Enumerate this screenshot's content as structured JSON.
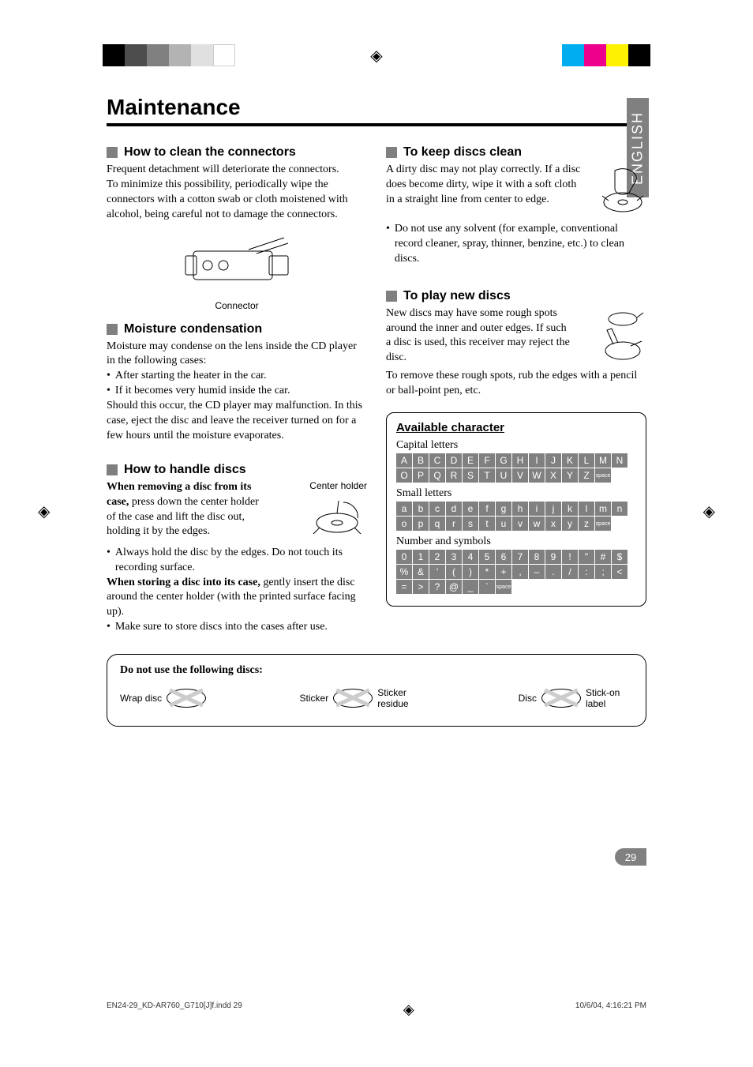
{
  "page_title": "Maintenance",
  "language_tab": "ENGLISH",
  "page_number": "29",
  "colors": {
    "accent_grey": "#808080",
    "black": "#000000",
    "white": "#ffffff",
    "cross_grey": "#cccccc"
  },
  "print_bars_left": [
    "#000000",
    "#4d4d4d",
    "#808080",
    "#b3b3b3",
    "#e0e0e0",
    "#ffffff"
  ],
  "print_bars_right": [
    "#00aeef",
    "#ec008c",
    "#fff200",
    "#000000"
  ],
  "left_sections": [
    {
      "heading": "How to clean the connectors",
      "paragraphs": [
        "Frequent detachment will deteriorate the connectors.",
        "To minimize this possibility, periodically wipe the connectors with a cotton swab or cloth moistened with alcohol, being careful not to damage the connectors."
      ],
      "figure_caption": "Connector"
    },
    {
      "heading": "Moisture condensation",
      "paragraphs": [
        "Moisture may condense on the lens inside the CD player in the following cases:"
      ],
      "bullets": [
        "After starting the heater in the car.",
        "If it becomes very humid inside the car."
      ],
      "after_text": "Should this occur, the CD player may malfunction. In this case, eject the disc and leave the receiver turned on for a few hours until the moisture evaporates."
    },
    {
      "heading": "How to handle discs",
      "center_holder_label": "Center holder",
      "lead_bold": "When removing a disc from its case,",
      "lead_rest": " press down the center holder of the case and lift the disc out, holding it by the edges.",
      "bullets": [
        "Always hold the disc by the edges. Do not touch its recording surface."
      ],
      "store_bold": "When storing a disc into its case,",
      "store_rest": " gently insert the disc around the center holder (with the printed surface facing up).",
      "bullets2": [
        "Make sure to store discs into the cases after use."
      ]
    }
  ],
  "right_sections": [
    {
      "heading": "To keep discs clean",
      "paragraphs": [
        "A dirty disc may not play correctly. If a disc does become dirty, wipe it with a soft cloth in a straight line from center to edge."
      ],
      "bullets": [
        "Do not use any solvent (for example, conventional record cleaner, spray, thinner, benzine, etc.) to clean discs."
      ]
    },
    {
      "heading": "To play new discs",
      "paragraphs": [
        "New discs may have some rough spots around the inner and outer edges. If such a disc is used, this receiver may reject the disc.",
        "To remove these rough spots, rub the edges with a pencil or ball-point pen, etc."
      ]
    }
  ],
  "char_box": {
    "title": "Available character",
    "groups": [
      {
        "label": "Capital letters",
        "rows": [
          [
            "A",
            "B",
            "C",
            "D",
            "E",
            "F",
            "G",
            "H",
            "I",
            "J",
            "K",
            "L",
            "M",
            "N"
          ],
          [
            "O",
            "P",
            "Q",
            "R",
            "S",
            "T",
            "U",
            "V",
            "W",
            "X",
            "Y",
            "Z",
            "space"
          ]
        ]
      },
      {
        "label": "Small letters",
        "rows": [
          [
            "a",
            "b",
            "c",
            "d",
            "e",
            "f",
            "g",
            "h",
            "i",
            "j",
            "k",
            "l",
            "m",
            "n"
          ],
          [
            "o",
            "p",
            "q",
            "r",
            "s",
            "t",
            "u",
            "v",
            "w",
            "x",
            "y",
            "z",
            "space"
          ]
        ]
      },
      {
        "label": "Number and symbols",
        "rows": [
          [
            "0",
            "1",
            "2",
            "3",
            "4",
            "5",
            "6",
            "7",
            "8",
            "9",
            "!",
            "\"",
            "#",
            "$"
          ],
          [
            "%",
            "&",
            "'",
            "(",
            ")",
            "*",
            "+",
            ",",
            "–",
            ".",
            "/",
            ":",
            ";",
            "<"
          ],
          [
            "=",
            ">",
            "?",
            "@",
            "_",
            "`",
            "space"
          ]
        ]
      }
    ]
  },
  "warn_box": {
    "title": "Do not use the following discs:",
    "items": [
      {
        "label_left": "Wrap disc",
        "label_right": ""
      },
      {
        "label_left": "Sticker",
        "label_right": "Sticker residue"
      },
      {
        "label_left": "Disc",
        "label_right": "Stick-on label"
      }
    ]
  },
  "footer": {
    "left": "EN24-29_KD-AR760_G710[J]f.indd   29",
    "right": "10/6/04, 4:16:21 PM"
  }
}
